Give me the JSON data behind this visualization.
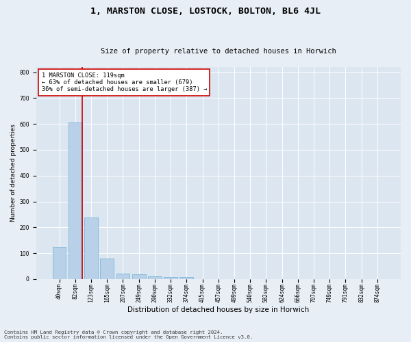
{
  "title": "1, MARSTON CLOSE, LOSTOCK, BOLTON, BL6 4JL",
  "subtitle": "Size of property relative to detached houses in Horwich",
  "xlabel": "Distribution of detached houses by size in Horwich",
  "ylabel": "Number of detached properties",
  "bin_labels": [
    "40sqm",
    "82sqm",
    "123sqm",
    "165sqm",
    "207sqm",
    "249sqm",
    "290sqm",
    "332sqm",
    "374sqm",
    "415sqm",
    "457sqm",
    "499sqm",
    "540sqm",
    "582sqm",
    "624sqm",
    "666sqm",
    "707sqm",
    "749sqm",
    "791sqm",
    "832sqm",
    "874sqm"
  ],
  "bar_heights": [
    125,
    605,
    238,
    80,
    20,
    18,
    10,
    7,
    8,
    0,
    0,
    0,
    0,
    0,
    0,
    0,
    0,
    0,
    0,
    0,
    0
  ],
  "bar_color": "#b8d0e8",
  "bar_edgecolor": "#6baed6",
  "property_line_color": "#cc0000",
  "annotation_text": "1 MARSTON CLOSE: 119sqm\n← 63% of detached houses are smaller (679)\n36% of semi-detached houses are larger (387) →",
  "annotation_box_facecolor": "#ffffff",
  "annotation_box_edgecolor": "#cc0000",
  "ylim": [
    0,
    820
  ],
  "yticks": [
    0,
    100,
    200,
    300,
    400,
    500,
    600,
    700,
    800
  ],
  "plot_bg_color": "#dce6f1",
  "fig_bg_color": "#e8eef5",
  "grid_color": "#ffffff",
  "footer_line1": "Contains HM Land Registry data © Crown copyright and database right 2024.",
  "footer_line2": "Contains public sector information licensed under the Open Government Licence v3.0.",
  "title_fontsize": 9.5,
  "subtitle_fontsize": 7.5,
  "xlabel_fontsize": 7.5,
  "ylabel_fontsize": 6.5,
  "tick_fontsize": 5.5,
  "annotation_fontsize": 6.2,
  "footer_fontsize": 5.2
}
